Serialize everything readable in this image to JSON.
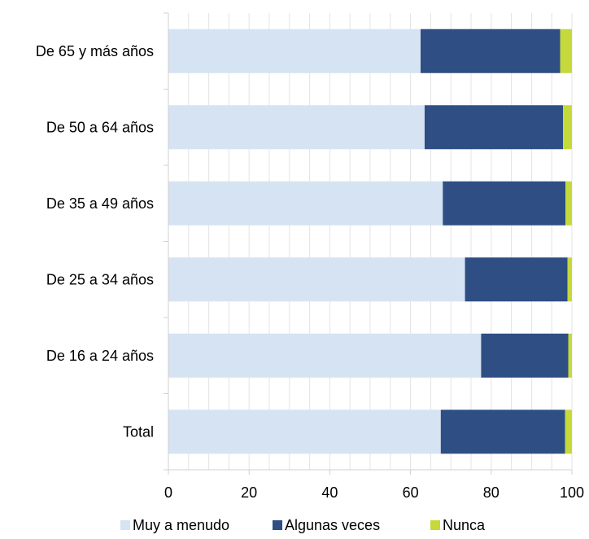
{
  "chart_data": {
    "type": "bar",
    "orientation": "horizontal",
    "stacked": true,
    "title": "",
    "xlabel": "",
    "ylabel": "",
    "categories": [
      "De 65 y más años",
      "De 50 a 64 años",
      "De 35 a 49 años",
      "De 25 a 34 años",
      "De 16 a 24 años",
      "Total"
    ],
    "series": [
      {
        "name": "Muy a menudo",
        "color": "#d6e3f2",
        "values": [
          62.5,
          63.5,
          68.0,
          73.5,
          77.5,
          67.5
        ]
      },
      {
        "name": "Algunas veces",
        "color": "#2e4e84",
        "values": [
          34.6,
          34.3,
          30.4,
          25.4,
          21.6,
          30.8
        ]
      },
      {
        "name": "Nunca",
        "color": "#c5d93a",
        "values": [
          2.9,
          2.2,
          1.6,
          1.1,
          0.9,
          1.7
        ]
      }
    ],
    "xlim": [
      0,
      100
    ],
    "xticks": [
      "0",
      "20",
      "40",
      "60",
      "80",
      "100"
    ],
    "grid": "vertical minor lines",
    "legend_position": "bottom"
  }
}
